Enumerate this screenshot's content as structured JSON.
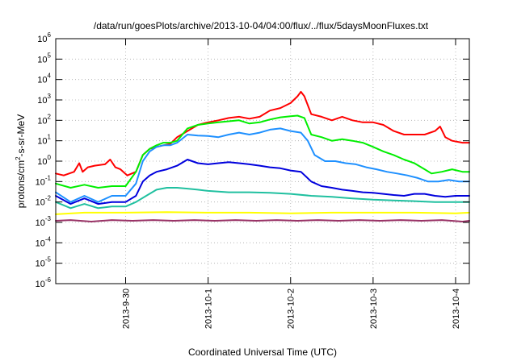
{
  "chart_data": {
    "type": "line",
    "title": "/data/run/goesPlots/archive/2013-10-04/04:00/flux/../flux/5daysMoonFluxes.txt",
    "xlabel": "Coordinated Universal Time (UTC)",
    "ylabel": {
      "base": "protons/cm",
      "sup": "2",
      "rest": "-s-sr-MeV"
    },
    "xlim": [
      "2013-09-29T03:40",
      "2013-10-04T04:00"
    ],
    "ylim": [
      1e-06,
      1000000.0
    ],
    "yscale": "log",
    "grid": true,
    "x_ticks": [
      {
        "label": "2013-9-30",
        "t": "2013-09-30T00:00"
      },
      {
        "label": "2013-10-1",
        "t": "2013-10-01T00:00"
      },
      {
        "label": "2013-10-2",
        "t": "2013-10-02T00:00"
      },
      {
        "label": "2013-10-3",
        "t": "2013-10-03T00:00"
      },
      {
        "label": "2013-10-4",
        "t": "2013-10-04T00:00"
      }
    ],
    "y_ticks": [
      {
        "base": "10",
        "exp": "6",
        "v": 1000000.0
      },
      {
        "base": "10",
        "exp": "5",
        "v": 100000.0
      },
      {
        "base": "10",
        "exp": "4",
        "v": 10000.0
      },
      {
        "base": "10",
        "exp": "3",
        "v": 1000.0
      },
      {
        "base": "10",
        "exp": "2",
        "v": 100.0
      },
      {
        "base": "10",
        "exp": "1",
        "v": 10.0
      },
      {
        "base": "10",
        "exp": "0",
        "v": 1.0
      },
      {
        "base": "10",
        "exp": "-1",
        "v": 0.1
      },
      {
        "base": "10",
        "exp": "-2",
        "v": 0.01
      },
      {
        "base": "10",
        "exp": "-3",
        "v": 0.001
      },
      {
        "base": "10",
        "exp": "-4",
        "v": 0.0001
      },
      {
        "base": "10",
        "exp": "-5",
        "v": 1e-05
      },
      {
        "base": "10",
        "exp": "-6",
        "v": 1e-06
      }
    ],
    "series": [
      {
        "color": "#ff0000",
        "points": [
          [
            "2013-09-29T03:40",
            0.25
          ],
          [
            "2013-09-29T06:00",
            0.2
          ],
          [
            "2013-09-29T09:00",
            0.3
          ],
          [
            "2013-09-29T10:30",
            0.8
          ],
          [
            "2013-09-29T11:30",
            0.3
          ],
          [
            "2013-09-29T13:00",
            0.5
          ],
          [
            "2013-09-29T15:00",
            0.6
          ],
          [
            "2013-09-29T18:00",
            0.7
          ],
          [
            "2013-09-29T19:30",
            1.2
          ],
          [
            "2013-09-29T21:00",
            0.5
          ],
          [
            "2013-09-29T22:30",
            0.4
          ],
          [
            "2013-09-30T00:30",
            0.2
          ],
          [
            "2013-09-30T03:00",
            0.3
          ],
          [
            "2013-09-30T05:00",
            2
          ],
          [
            "2013-09-30T07:00",
            4
          ],
          [
            "2013-09-30T09:00",
            5
          ],
          [
            "2013-09-30T11:00",
            6
          ],
          [
            "2013-09-30T13:00",
            7
          ],
          [
            "2013-09-30T15:00",
            15
          ],
          [
            "2013-09-30T18:00",
            30
          ],
          [
            "2013-09-30T21:00",
            60
          ],
          [
            "2013-10-01T00:00",
            80
          ],
          [
            "2013-10-01T03:00",
            100
          ],
          [
            "2013-10-01T06:00",
            130
          ],
          [
            "2013-10-01T09:00",
            150
          ],
          [
            "2013-10-01T12:00",
            120
          ],
          [
            "2013-10-01T15:00",
            150
          ],
          [
            "2013-10-01T18:00",
            300
          ],
          [
            "2013-10-01T21:00",
            400
          ],
          [
            "2013-10-02T00:00",
            700
          ],
          [
            "2013-10-02T02:00",
            1500
          ],
          [
            "2013-10-02T03:00",
            2500
          ],
          [
            "2013-10-02T04:00",
            1500
          ],
          [
            "2013-10-02T06:00",
            200
          ],
          [
            "2013-10-02T09:00",
            150
          ],
          [
            "2013-10-02T12:00",
            100
          ],
          [
            "2013-10-02T15:00",
            150
          ],
          [
            "2013-10-02T18:00",
            100
          ],
          [
            "2013-10-02T21:00",
            80
          ],
          [
            "2013-10-03T00:00",
            80
          ],
          [
            "2013-10-03T03:00",
            60
          ],
          [
            "2013-10-03T06:00",
            30
          ],
          [
            "2013-10-03T09:00",
            20
          ],
          [
            "2013-10-03T12:00",
            20
          ],
          [
            "2013-10-03T15:00",
            20
          ],
          [
            "2013-10-03T18:00",
            30
          ],
          [
            "2013-10-03T19:30",
            50
          ],
          [
            "2013-10-03T21:00",
            15
          ],
          [
            "2013-10-03T23:00",
            10
          ],
          [
            "2013-10-04T02:00",
            8
          ],
          [
            "2013-10-04T04:00",
            8
          ]
        ]
      },
      {
        "color": "#00ee00",
        "points": [
          [
            "2013-09-29T03:40",
            0.08
          ],
          [
            "2013-09-29T08:00",
            0.05
          ],
          [
            "2013-09-29T12:00",
            0.07
          ],
          [
            "2013-09-29T16:00",
            0.05
          ],
          [
            "2013-09-29T20:00",
            0.06
          ],
          [
            "2013-09-30T00:00",
            0.06
          ],
          [
            "2013-09-30T03:00",
            0.3
          ],
          [
            "2013-09-30T05:00",
            2
          ],
          [
            "2013-09-30T07:00",
            4
          ],
          [
            "2013-09-30T09:00",
            6
          ],
          [
            "2013-09-30T11:00",
            8
          ],
          [
            "2013-09-30T13:00",
            8
          ],
          [
            "2013-09-30T15:00",
            10
          ],
          [
            "2013-09-30T18:00",
            40
          ],
          [
            "2013-09-30T21:00",
            60
          ],
          [
            "2013-10-01T00:00",
            70
          ],
          [
            "2013-10-01T03:00",
            80
          ],
          [
            "2013-10-01T06:00",
            90
          ],
          [
            "2013-10-01T09:00",
            100
          ],
          [
            "2013-10-01T12:00",
            70
          ],
          [
            "2013-10-01T15:00",
            80
          ],
          [
            "2013-10-01T18:00",
            110
          ],
          [
            "2013-10-01T21:00",
            140
          ],
          [
            "2013-10-02T00:00",
            160
          ],
          [
            "2013-10-02T02:00",
            170
          ],
          [
            "2013-10-02T04:00",
            130
          ],
          [
            "2013-10-02T06:00",
            20
          ],
          [
            "2013-10-02T09:00",
            15
          ],
          [
            "2013-10-02T12:00",
            10
          ],
          [
            "2013-10-02T15:00",
            12
          ],
          [
            "2013-10-02T18:00",
            10
          ],
          [
            "2013-10-02T21:00",
            8
          ],
          [
            "2013-10-03T00:00",
            5
          ],
          [
            "2013-10-03T03:00",
            3
          ],
          [
            "2013-10-03T06:00",
            2
          ],
          [
            "2013-10-03T09:00",
            1.2
          ],
          [
            "2013-10-03T12:00",
            0.8
          ],
          [
            "2013-10-03T15:00",
            0.4
          ],
          [
            "2013-10-03T17:00",
            0.25
          ],
          [
            "2013-10-03T20:00",
            0.3
          ],
          [
            "2013-10-03T23:00",
            0.4
          ],
          [
            "2013-10-04T02:00",
            0.3
          ],
          [
            "2013-10-04T04:00",
            0.3
          ]
        ]
      },
      {
        "color": "#1e90ff",
        "points": [
          [
            "2013-09-29T03:40",
            0.03
          ],
          [
            "2013-09-29T08:00",
            0.01
          ],
          [
            "2013-09-29T12:00",
            0.02
          ],
          [
            "2013-09-29T16:00",
            0.01
          ],
          [
            "2013-09-29T20:00",
            0.02
          ],
          [
            "2013-09-30T00:00",
            0.02
          ],
          [
            "2013-09-30T03:00",
            0.08
          ],
          [
            "2013-09-30T05:00",
            1
          ],
          [
            "2013-09-30T07:00",
            3
          ],
          [
            "2013-09-30T09:00",
            5
          ],
          [
            "2013-09-30T11:00",
            6
          ],
          [
            "2013-09-30T13:00",
            6
          ],
          [
            "2013-09-30T15:00",
            8
          ],
          [
            "2013-09-30T18:00",
            20
          ],
          [
            "2013-09-30T21:00",
            18
          ],
          [
            "2013-10-01T00:00",
            17
          ],
          [
            "2013-10-01T03:00",
            15
          ],
          [
            "2013-10-01T06:00",
            20
          ],
          [
            "2013-10-01T09:00",
            25
          ],
          [
            "2013-10-01T12:00",
            20
          ],
          [
            "2013-10-01T15:00",
            25
          ],
          [
            "2013-10-01T18:00",
            35
          ],
          [
            "2013-10-01T21:00",
            40
          ],
          [
            "2013-10-02T00:00",
            30
          ],
          [
            "2013-10-02T03:00",
            25
          ],
          [
            "2013-10-02T05:00",
            10
          ],
          [
            "2013-10-02T07:00",
            2
          ],
          [
            "2013-10-02T10:00",
            1
          ],
          [
            "2013-10-02T13:00",
            1
          ],
          [
            "2013-10-02T16:00",
            0.8
          ],
          [
            "2013-10-02T19:00",
            0.7
          ],
          [
            "2013-10-02T22:00",
            0.5
          ],
          [
            "2013-10-03T01:00",
            0.4
          ],
          [
            "2013-10-03T04:00",
            0.3
          ],
          [
            "2013-10-03T07:00",
            0.25
          ],
          [
            "2013-10-03T10:00",
            0.2
          ],
          [
            "2013-10-03T13:00",
            0.15
          ],
          [
            "2013-10-03T16:00",
            0.1
          ],
          [
            "2013-10-03T19:00",
            0.1
          ],
          [
            "2013-10-03T22:00",
            0.12
          ],
          [
            "2013-10-04T01:00",
            0.1
          ],
          [
            "2013-10-04T04:00",
            0.1
          ]
        ]
      },
      {
        "color": "#0000dd",
        "points": [
          [
            "2013-09-29T03:40",
            0.02
          ],
          [
            "2013-09-29T08:00",
            0.008
          ],
          [
            "2013-09-29T12:00",
            0.015
          ],
          [
            "2013-09-29T16:00",
            0.008
          ],
          [
            "2013-09-29T20:00",
            0.01
          ],
          [
            "2013-09-30T00:00",
            0.01
          ],
          [
            "2013-09-30T03:00",
            0.02
          ],
          [
            "2013-09-30T05:00",
            0.1
          ],
          [
            "2013-09-30T07:00",
            0.2
          ],
          [
            "2013-09-30T09:00",
            0.3
          ],
          [
            "2013-09-30T12:00",
            0.4
          ],
          [
            "2013-09-30T15:00",
            0.6
          ],
          [
            "2013-09-30T18:00",
            1.2
          ],
          [
            "2013-09-30T21:00",
            0.8
          ],
          [
            "2013-10-01T00:00",
            0.7
          ],
          [
            "2013-10-01T03:00",
            0.8
          ],
          [
            "2013-10-01T06:00",
            0.9
          ],
          [
            "2013-10-01T09:00",
            0.8
          ],
          [
            "2013-10-01T12:00",
            0.7
          ],
          [
            "2013-10-01T15:00",
            0.6
          ],
          [
            "2013-10-01T18:00",
            0.5
          ],
          [
            "2013-10-01T21:00",
            0.45
          ],
          [
            "2013-10-02T00:00",
            0.35
          ],
          [
            "2013-10-02T03:00",
            0.3
          ],
          [
            "2013-10-02T06:00",
            0.1
          ],
          [
            "2013-10-02T09:00",
            0.06
          ],
          [
            "2013-10-02T12:00",
            0.05
          ],
          [
            "2013-10-02T15:00",
            0.04
          ],
          [
            "2013-10-02T18:00",
            0.035
          ],
          [
            "2013-10-02T21:00",
            0.03
          ],
          [
            "2013-10-03T00:00",
            0.028
          ],
          [
            "2013-10-03T03:00",
            0.025
          ],
          [
            "2013-10-03T06:00",
            0.022
          ],
          [
            "2013-10-03T09:00",
            0.02
          ],
          [
            "2013-10-03T12:00",
            0.025
          ],
          [
            "2013-10-03T15:00",
            0.025
          ],
          [
            "2013-10-03T18:00",
            0.02
          ],
          [
            "2013-10-03T21:00",
            0.018
          ],
          [
            "2013-10-04T00:00",
            0.02
          ],
          [
            "2013-10-04T04:00",
            0.02
          ]
        ]
      },
      {
        "color": "#20c0a0",
        "points": [
          [
            "2013-09-29T03:40",
            0.01
          ],
          [
            "2013-09-29T08:00",
            0.005
          ],
          [
            "2013-09-29T12:00",
            0.008
          ],
          [
            "2013-09-29T16:00",
            0.005
          ],
          [
            "2013-09-29T20:00",
            0.006
          ],
          [
            "2013-09-30T00:00",
            0.006
          ],
          [
            "2013-09-30T03:00",
            0.01
          ],
          [
            "2013-09-30T06:00",
            0.02
          ],
          [
            "2013-09-30T09:00",
            0.04
          ],
          [
            "2013-09-30T12:00",
            0.05
          ],
          [
            "2013-09-30T15:00",
            0.05
          ],
          [
            "2013-09-30T18:00",
            0.045
          ],
          [
            "2013-09-30T21:00",
            0.04
          ],
          [
            "2013-10-01T00:00",
            0.035
          ],
          [
            "2013-10-01T06:00",
            0.03
          ],
          [
            "2013-10-01T12:00",
            0.03
          ],
          [
            "2013-10-01T18:00",
            0.028
          ],
          [
            "2013-10-02T00:00",
            0.025
          ],
          [
            "2013-10-02T06:00",
            0.02
          ],
          [
            "2013-10-02T12:00",
            0.018
          ],
          [
            "2013-10-02T18:00",
            0.015
          ],
          [
            "2013-10-03T00:00",
            0.013
          ],
          [
            "2013-10-03T06:00",
            0.012
          ],
          [
            "2013-10-03T12:00",
            0.011
          ],
          [
            "2013-10-03T18:00",
            0.01
          ],
          [
            "2013-10-04T00:00",
            0.01
          ],
          [
            "2013-10-04T04:00",
            0.01
          ]
        ]
      },
      {
        "color": "#ffff00",
        "points": [
          [
            "2013-09-29T03:40",
            0.0025
          ],
          [
            "2013-09-29T12:00",
            0.003
          ],
          [
            "2013-09-30T00:00",
            0.003
          ],
          [
            "2013-09-30T12:00",
            0.0032
          ],
          [
            "2013-10-01T00:00",
            0.003
          ],
          [
            "2013-10-01T12:00",
            0.003
          ],
          [
            "2013-10-02T00:00",
            0.0028
          ],
          [
            "2013-10-02T12:00",
            0.003
          ],
          [
            "2013-10-03T00:00",
            0.003
          ],
          [
            "2013-10-03T12:00",
            0.003
          ],
          [
            "2013-10-04T00:00",
            0.0028
          ],
          [
            "2013-10-04T04:00",
            0.003
          ]
        ]
      },
      {
        "color": "#993366",
        "points": [
          [
            "2013-09-29T03:40",
            0.0012
          ],
          [
            "2013-09-29T08:00",
            0.0013
          ],
          [
            "2013-09-29T14:00",
            0.0011
          ],
          [
            "2013-09-29T20:00",
            0.0013
          ],
          [
            "2013-09-30T02:00",
            0.0012
          ],
          [
            "2013-09-30T08:00",
            0.0013
          ],
          [
            "2013-09-30T14:00",
            0.0012
          ],
          [
            "2013-09-30T20:00",
            0.0013
          ],
          [
            "2013-10-01T02:00",
            0.0012
          ],
          [
            "2013-10-01T08:00",
            0.0013
          ],
          [
            "2013-10-01T14:00",
            0.0012
          ],
          [
            "2013-10-01T20:00",
            0.0013
          ],
          [
            "2013-10-02T02:00",
            0.0012
          ],
          [
            "2013-10-02T08:00",
            0.0013
          ],
          [
            "2013-10-02T14:00",
            0.0012
          ],
          [
            "2013-10-02T20:00",
            0.0013
          ],
          [
            "2013-10-03T02:00",
            0.0012
          ],
          [
            "2013-10-03T08:00",
            0.0013
          ],
          [
            "2013-10-03T14:00",
            0.0012
          ],
          [
            "2013-10-03T20:00",
            0.0013
          ],
          [
            "2013-10-04T02:00",
            0.0011
          ],
          [
            "2013-10-04T04:00",
            0.0012
          ]
        ]
      }
    ]
  }
}
